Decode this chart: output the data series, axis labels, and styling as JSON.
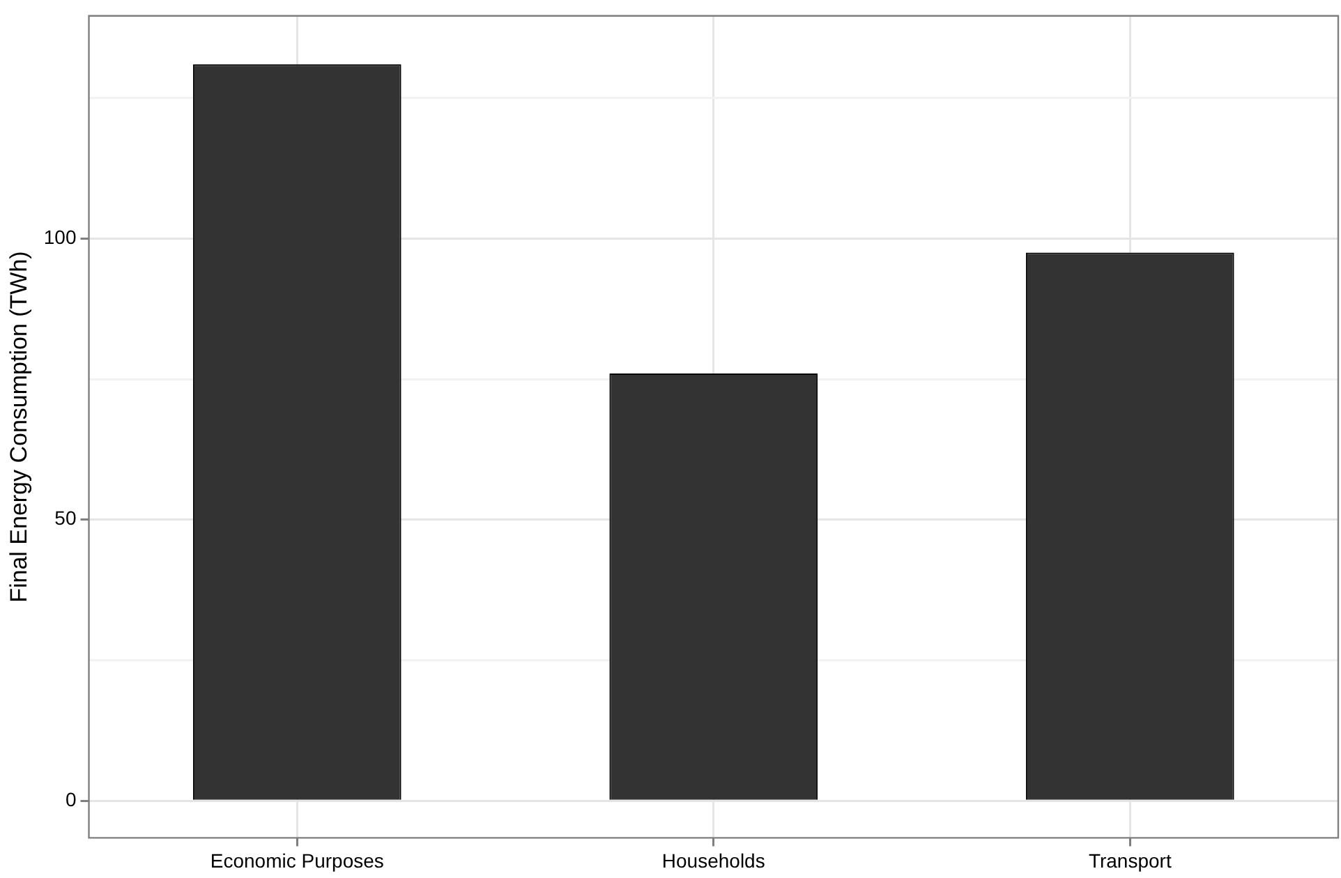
{
  "chart_data": {
    "type": "bar",
    "ylabel": "Final Energy Consumption (TWh)",
    "categories": [
      "Economic Purposes",
      "Households",
      "Transport"
    ],
    "values": [
      131,
      76,
      97.5
    ],
    "color": "#333333",
    "ylim": [
      -6.6,
      139.6
    ],
    "yticks": [
      0,
      {
        "value": 25,
        "label": null
      },
      50,
      {
        "value": 75,
        "label": null
      },
      100,
      {
        "value": 125,
        "label": null
      }
    ],
    "grid": true
  }
}
